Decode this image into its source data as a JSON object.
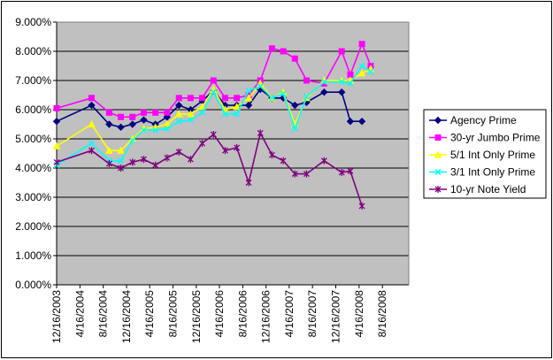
{
  "chart_data": {
    "type": "line",
    "title": "",
    "xlabel": "",
    "ylabel": "",
    "ylim": [
      0,
      9
    ],
    "y_tick_format": "percent-3dp",
    "y_ticks": [
      "0.000%",
      "1.000%",
      "2.000%",
      "3.000%",
      "4.000%",
      "5.000%",
      "6.000%",
      "7.000%",
      "8.000%",
      "9.000%"
    ],
    "x_tick_labels": [
      "12/16/2003",
      "4/16/2004",
      "8/16/2004",
      "12/16/2004",
      "4/16/2005",
      "8/16/2005",
      "12/16/2005",
      "4/16/2006",
      "8/16/2006",
      "12/16/2006",
      "4/16/2007",
      "8/16/2007",
      "12/16/2007",
      "4/16/2008",
      "8/16/2008"
    ],
    "x": [
      "2003-12-16",
      "2004-06-16",
      "2004-09-16",
      "2004-11-16",
      "2005-01-16",
      "2005-03-16",
      "2005-05-16",
      "2005-07-16",
      "2005-09-16",
      "2005-11-16",
      "2006-01-16",
      "2006-03-16",
      "2006-05-16",
      "2006-07-16",
      "2006-09-16",
      "2006-11-16",
      "2007-01-16",
      "2007-03-16",
      "2007-05-16",
      "2007-07-16",
      "2007-10-16",
      "2008-01-16",
      "2008-03-01",
      "2008-05-01",
      "2008-06-16",
      "2008-08-16",
      "2008-10-16",
      "2008-12-01",
      "2008-12-16"
    ],
    "series": [
      {
        "name": "Agency Prime",
        "color": "#000080",
        "marker": "diamond",
        "values": [
          5.6,
          6.15,
          5.5,
          5.4,
          5.5,
          5.65,
          5.5,
          5.75,
          6.15,
          6.0,
          6.3,
          6.65,
          6.15,
          6.15,
          6.15,
          6.7,
          6.4,
          6.4,
          6.15,
          6.25,
          6.6,
          6.6,
          5.6,
          5.6,
          null,
          null,
          null,
          null,
          null
        ]
      },
      {
        "name": "30-yr Jumbo Prime",
        "color": "#ff00ff",
        "marker": "square",
        "values": [
          6.05,
          6.4,
          5.9,
          5.75,
          5.75,
          5.9,
          5.9,
          5.9,
          6.4,
          6.4,
          6.4,
          7.0,
          6.4,
          6.4,
          6.5,
          7.0,
          8.1,
          8.0,
          7.75,
          7.0,
          6.9,
          8.0,
          7.2,
          8.25,
          7.5,
          null,
          null,
          null,
          null
        ]
      },
      {
        "name": "5/1 Int Only Prime",
        "color": "#ffff00",
        "marker": "triangle",
        "values": [
          4.75,
          5.5,
          4.6,
          4.6,
          5.0,
          5.35,
          5.4,
          5.5,
          5.85,
          5.85,
          6.1,
          6.7,
          6.0,
          6.1,
          6.4,
          6.9,
          6.4,
          6.6,
          5.5,
          6.4,
          7.0,
          7.0,
          7.0,
          7.25,
          7.4,
          null,
          null,
          null,
          null
        ]
      },
      {
        "name": "3/1 Int Only Prime",
        "color": "#00ffff",
        "marker": "x",
        "values": [
          4.1,
          4.85,
          4.25,
          4.25,
          4.95,
          5.3,
          5.3,
          5.35,
          5.6,
          5.65,
          5.9,
          6.6,
          5.85,
          5.85,
          6.65,
          6.8,
          6.4,
          6.55,
          5.35,
          6.45,
          6.95,
          6.95,
          6.9,
          7.5,
          7.3,
          null,
          null,
          null,
          null
        ]
      },
      {
        "name": "10-yr Note Yield",
        "color": "#800080",
        "marker": "star",
        "values": [
          4.2,
          4.6,
          4.15,
          4.0,
          4.2,
          4.3,
          4.1,
          4.35,
          4.55,
          4.3,
          4.85,
          5.15,
          4.6,
          4.7,
          3.5,
          5.2,
          4.45,
          4.25,
          3.8,
          3.8,
          4.25,
          3.85,
          3.9,
          2.7,
          null,
          null,
          null,
          null,
          null
        ]
      }
    ],
    "legend_position": "right",
    "gridlines": "horizontal",
    "plot_background": "#c0c0c0"
  }
}
